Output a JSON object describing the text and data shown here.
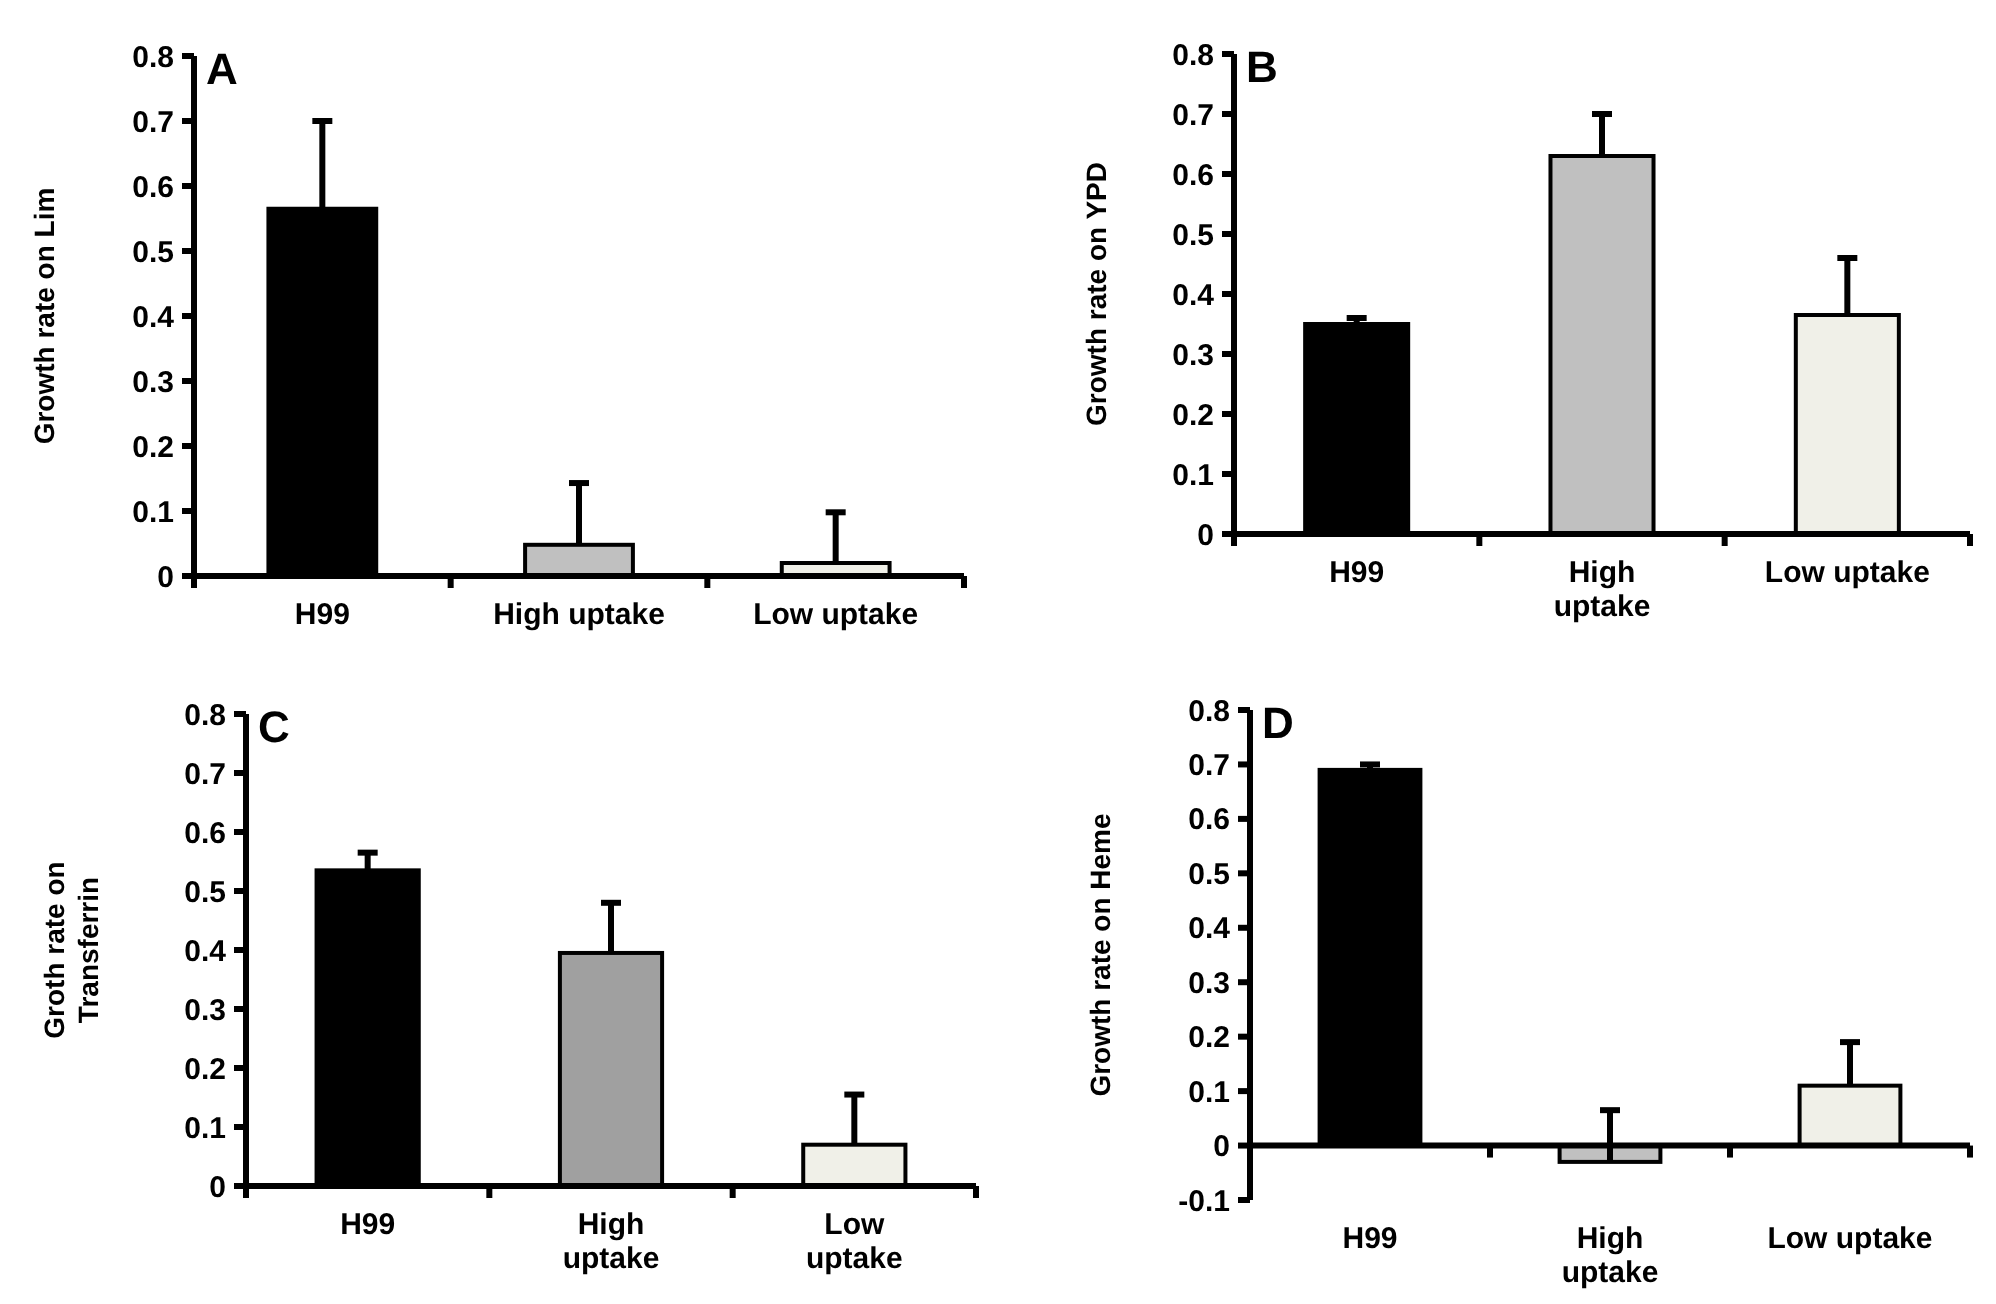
{
  "chart_data": [
    {
      "type": "bar",
      "title": "A",
      "ylabel": "Growth rate on Lim",
      "categories": [
        "H99",
        "High uptake",
        "Low uptake"
      ],
      "values": [
        0.565,
        0.048,
        0.02
      ],
      "colors": [
        "#000000",
        "#c0c0c0",
        "#f0f0e8"
      ],
      "errors": [
        [
          0.565,
          0.7
        ],
        [
          0.048,
          0.143
        ],
        [
          0.02,
          0.098
        ]
      ],
      "ylim": [
        0,
        0.8
      ],
      "yticks": [
        0,
        0.1,
        0.2,
        0.3,
        0.4,
        0.5,
        0.6,
        0.7,
        0.8
      ]
    },
    {
      "type": "bar",
      "title": "B",
      "ylabel": "Growth rate on YPD",
      "categories": [
        "H99",
        "High uptake",
        "Low uptake"
      ],
      "values": [
        0.35,
        0.63,
        0.365
      ],
      "colors": [
        "#000000",
        "#c0c0c0",
        "#f0f0e8"
      ],
      "errors": [
        [
          0.35,
          0.36
        ],
        [
          0.63,
          0.7
        ],
        [
          0.365,
          0.46
        ]
      ],
      "ylim": [
        0,
        0.8
      ],
      "yticks": [
        0,
        0.1,
        0.2,
        0.3,
        0.4,
        0.5,
        0.6,
        0.7,
        0.8
      ]
    },
    {
      "type": "bar",
      "title": "C",
      "ylabel": "Groth rate on Transferrin",
      "categories": [
        "H99",
        "High uptake",
        "Low uptake"
      ],
      "values": [
        0.535,
        0.395,
        0.07
      ],
      "colors": [
        "#000000",
        "#a0a0a0",
        "#f0f0e8"
      ],
      "errors": [
        [
          0.535,
          0.565
        ],
        [
          0.395,
          0.48
        ],
        [
          0.07,
          0.155
        ]
      ],
      "ylim": [
        0,
        0.8
      ],
      "yticks": [
        0,
        0.1,
        0.2,
        0.3,
        0.4,
        0.5,
        0.6,
        0.7,
        0.8
      ]
    },
    {
      "type": "bar",
      "title": "D",
      "ylabel": "Growth rate on Heme",
      "categories": [
        "H99",
        "High uptake",
        "Low uptake"
      ],
      "values": [
        0.69,
        -0.03,
        0.11
      ],
      "colors": [
        "#000000",
        "#c0c0c0",
        "#f0f0e8"
      ],
      "errors": [
        [
          0.69,
          0.7
        ],
        [
          -0.03,
          0.065
        ],
        [
          0.11,
          0.19
        ]
      ],
      "ylim": [
        -0.1,
        0.8
      ],
      "yticks": [
        -0.1,
        0,
        0.1,
        0.2,
        0.3,
        0.4,
        0.5,
        0.6,
        0.7,
        0.8
      ]
    }
  ]
}
